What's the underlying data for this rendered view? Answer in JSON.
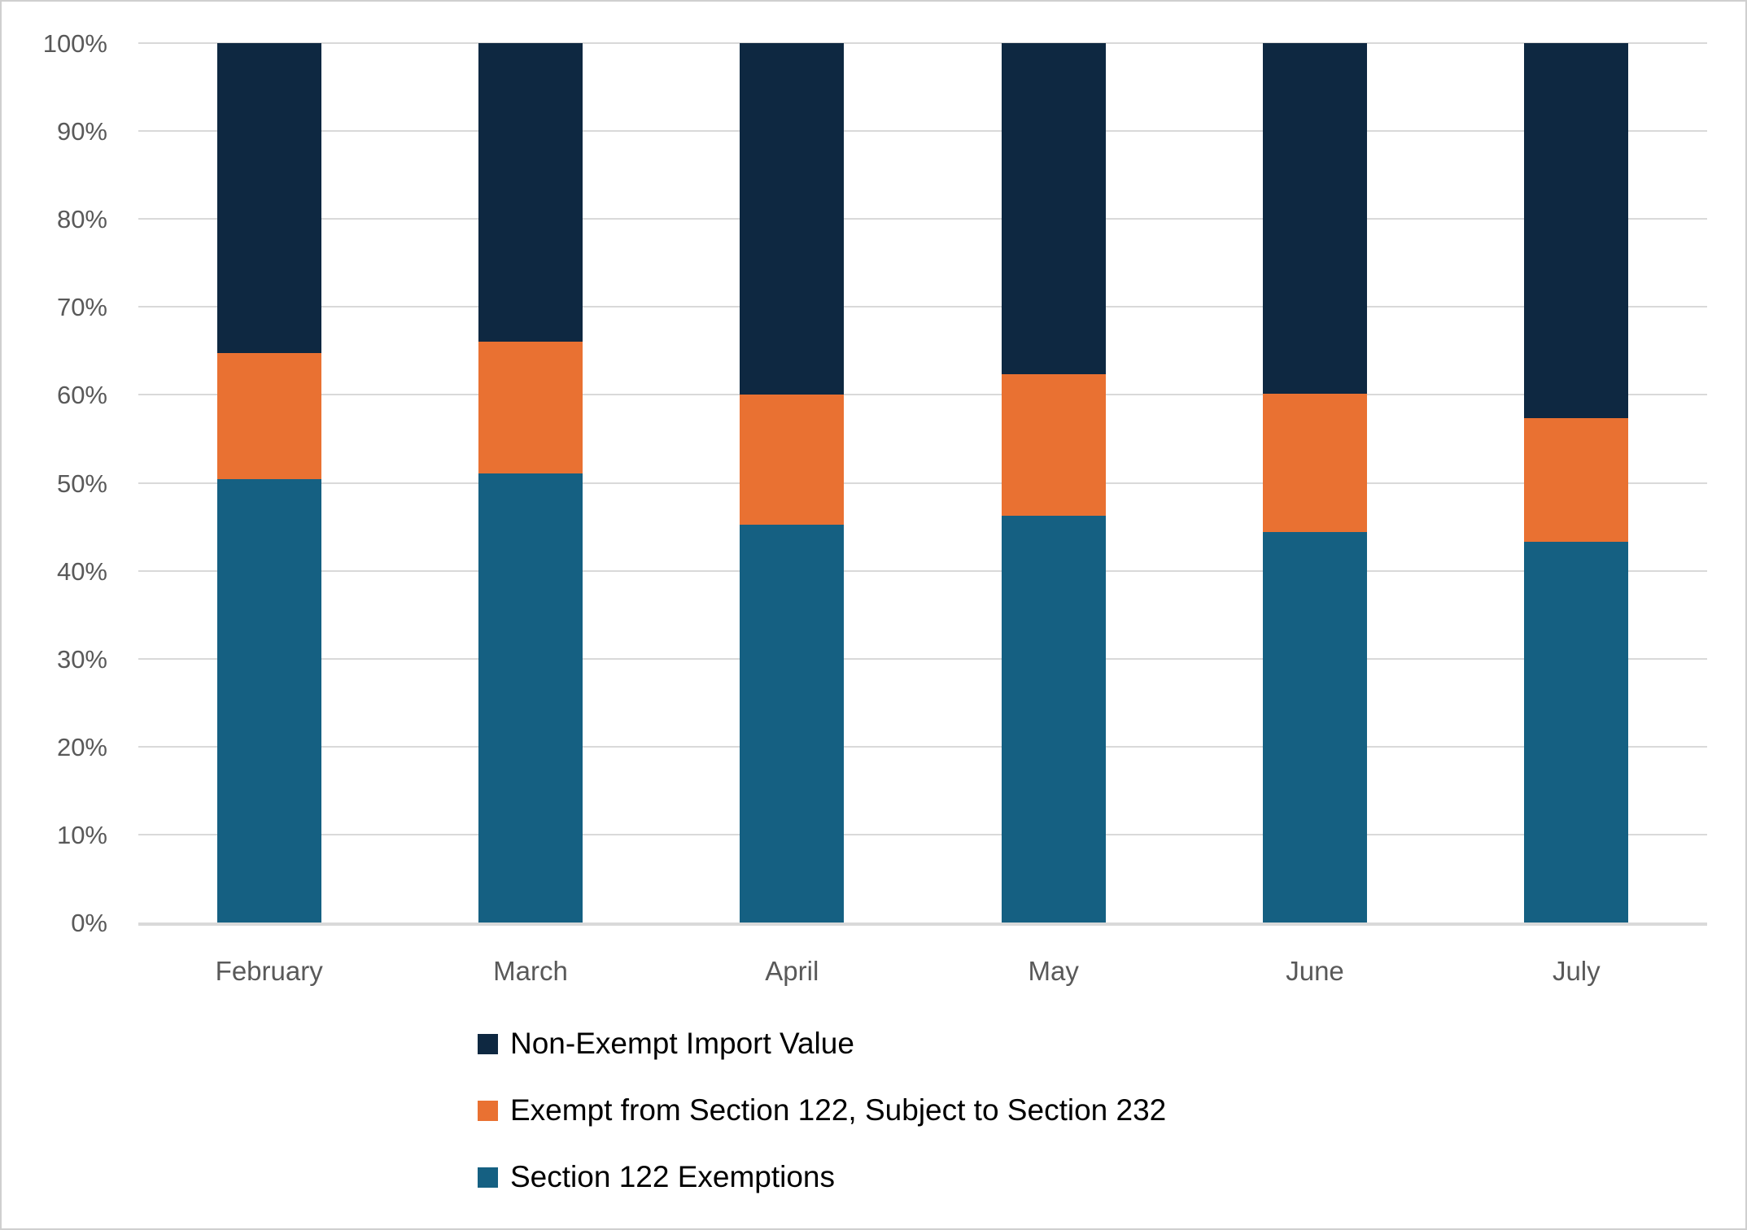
{
  "chart_data": {
    "type": "bar",
    "subtype": "stacked-100-percent-column",
    "title": "",
    "xlabel": "",
    "ylabel": "",
    "ylim": [
      0,
      100
    ],
    "grid": "horizontal",
    "ytick_labels": [
      "0%",
      "10%",
      "20%",
      "30%",
      "40%",
      "50%",
      "60%",
      "70%",
      "80%",
      "90%",
      "100%"
    ],
    "categories": [
      "February",
      "March",
      "April",
      "May",
      "June",
      "July"
    ],
    "series": [
      {
        "name": "Section 122 Exemptions",
        "color": "#156082",
        "values": [
          50.4,
          51.1,
          45.2,
          46.3,
          44.4,
          43.3
        ]
      },
      {
        "name": "Exempt from Section 122, Subject to Section 232",
        "color": "#E97132",
        "values": [
          14.4,
          15.0,
          14.8,
          16.1,
          15.7,
          14.1
        ]
      },
      {
        "name": "Non-Exempt Import Value",
        "color": "#0E2841",
        "values": [
          35.2,
          33.9,
          40.0,
          37.6,
          39.9,
          42.6
        ]
      }
    ],
    "legend_position": "bottom-left",
    "legend_items": [
      {
        "label": "Non-Exempt Import Value",
        "color": "#0E2841"
      },
      {
        "label": "Exempt from Section 122, Subject to Section 232",
        "color": "#E97132"
      },
      {
        "label": "Section 122 Exemptions",
        "color": "#156082"
      }
    ],
    "colors": {
      "navy": "#0E2841",
      "orange": "#E97132",
      "teal": "#156082",
      "gridline": "#D9D9D9",
      "axis_text": "#595959",
      "legend_text": "#000000"
    }
  }
}
